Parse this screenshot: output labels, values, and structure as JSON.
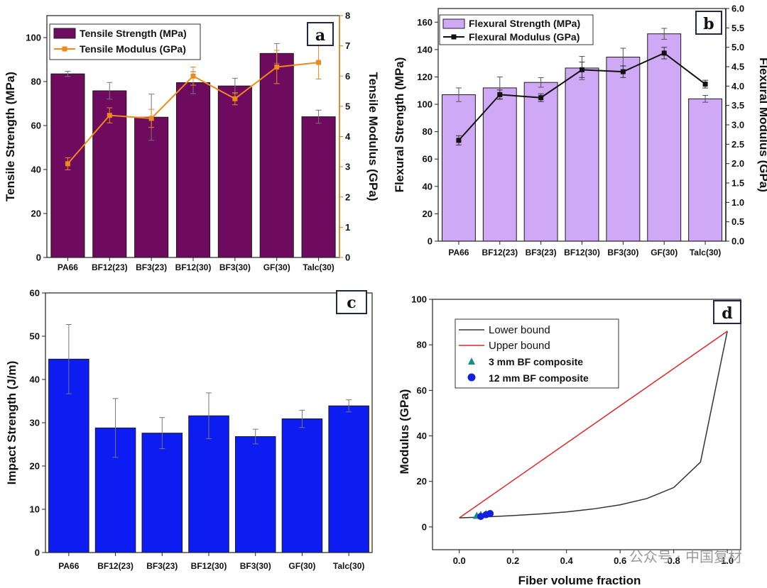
{
  "chart_data": [
    {
      "panel": "a",
      "type": "bar",
      "categories": [
        "PA66",
        "BF12(23)",
        "BF3(23)",
        "BF12(30)",
        "BF3(30)",
        "GF(30)",
        "Talc(30)"
      ],
      "ylabel": "Tensile Strength (MPa)",
      "ylabel_right": "Tensile Modulus (GPa)",
      "ylim": [
        0,
        110
      ],
      "ylim_right": [
        0,
        8
      ],
      "yticks": [
        0,
        20,
        40,
        60,
        80,
        100
      ],
      "yticks_right": [
        0,
        1,
        2,
        3,
        4,
        5,
        6,
        7,
        8
      ],
      "series": [
        {
          "name": "Tensile Strength (MPa)",
          "kind": "bar",
          "axis": "left",
          "color": "#6e0b5e",
          "values": [
            83.5,
            75.8,
            63.8,
            79.5,
            78.0,
            92.8,
            64.0
          ],
          "errors": [
            1.2,
            3.8,
            10.5,
            5.0,
            3.5,
            4.5,
            3.0
          ]
        },
        {
          "name": "Tensile Modulus (GPa)",
          "kind": "line",
          "axis": "right",
          "color": "#ee8a1d",
          "values": [
            3.1,
            4.7,
            4.6,
            6.0,
            5.25,
            6.3,
            6.45
          ],
          "errors": [
            0.2,
            0.25,
            0.3,
            0.3,
            0.2,
            0.55,
            0.55
          ]
        }
      ]
    },
    {
      "panel": "b",
      "type": "bar",
      "categories": [
        "PA66",
        "BF12(23)",
        "BF3(23)",
        "BF12(30)",
        "BF3(30)",
        "GF(30)",
        "Talc(30)"
      ],
      "ylabel": "Flexural Strength (MPa)",
      "ylabel_right": "Flexural Modulus (GPa)",
      "ylim": [
        0,
        170
      ],
      "ylim_right": [
        0,
        6
      ],
      "yticks": [
        0,
        20,
        40,
        60,
        80,
        100,
        120,
        140,
        160
      ],
      "yticks_right": [
        "0.0",
        "0.5",
        "1.0",
        "1.5",
        "2.0",
        "2.5",
        "3.0",
        "3.5",
        "4.0",
        "4.5",
        "5.0",
        "5.5",
        "6.0"
      ],
      "series": [
        {
          "name": "Flexural Strength (MPa)",
          "kind": "bar",
          "axis": "left",
          "color": "#cfa9f5",
          "values": [
            107,
            112,
            116,
            126.5,
            134.5,
            151.5,
            104
          ],
          "errors": [
            5,
            8,
            3.5,
            8.5,
            6.5,
            4,
            2.5
          ]
        },
        {
          "name": "Flexural Modulus (GPa)",
          "kind": "line",
          "axis": "right",
          "color": "#111111",
          "values": [
            2.6,
            3.78,
            3.7,
            4.42,
            4.37,
            4.85,
            4.05
          ],
          "errors": [
            0.12,
            0.12,
            0.1,
            0.2,
            0.15,
            0.15,
            0.1
          ]
        }
      ]
    },
    {
      "panel": "c",
      "type": "bar",
      "categories": [
        "PA66",
        "BF12(23)",
        "BF3(23)",
        "BF12(30)",
        "BF3(30)",
        "GF(30)",
        "Talc(30)"
      ],
      "ylabel": "Impact Strength (J/m)",
      "ylim": [
        0,
        60
      ],
      "yticks": [
        0,
        10,
        20,
        30,
        40,
        50,
        60
      ],
      "series": [
        {
          "name": "Impact Strength (J/m)",
          "kind": "bar",
          "axis": "left",
          "color": "#0d1cf1",
          "values": [
            44.7,
            28.8,
            27.6,
            31.6,
            26.8,
            30.9,
            33.9
          ],
          "errors": [
            8,
            6.8,
            3.6,
            5.3,
            1.7,
            2.0,
            1.4
          ]
        }
      ]
    },
    {
      "panel": "d",
      "type": "line",
      "xlabel": "Fiber volume fraction",
      "ylabel": "Modulus (GPa)",
      "xlim": [
        -0.1,
        1.05
      ],
      "ylim": [
        -10,
        100
      ],
      "xticks": [
        "0.0",
        "0.2",
        "0.4",
        "0.6",
        "0.8",
        "1.0"
      ],
      "yticks": [
        0,
        20,
        40,
        60,
        80,
        100
      ],
      "series": [
        {
          "name": "Lower bound",
          "kind": "line",
          "color": "#333333",
          "x": [
            0,
            0.1,
            0.2,
            0.3,
            0.4,
            0.5,
            0.6,
            0.7,
            0.8,
            0.9,
            1.0
          ],
          "y": [
            4,
            4.4,
            5.0,
            5.7,
            6.6,
            7.9,
            9.7,
            12.5,
            17.3,
            28.5,
            86
          ]
        },
        {
          "name": "Upper bound",
          "kind": "line",
          "color": "#e0272b",
          "x": [
            0,
            1.0
          ],
          "y": [
            4,
            86
          ]
        },
        {
          "name": "3 mm BF composite",
          "kind": "scatter",
          "marker": "triangle",
          "color": "#178d85",
          "x": [
            0.065,
            0.08,
            0.1
          ],
          "y": [
            4.8,
            5.2,
            5.6
          ]
        },
        {
          "name": "12 mm BF composite",
          "kind": "scatter",
          "marker": "circle",
          "color": "#1420e0",
          "x": [
            0.08,
            0.1,
            0.115
          ],
          "y": [
            4.6,
            5.4,
            5.9
          ]
        }
      ]
    }
  ],
  "panel_labels": {
    "a": "a",
    "b": "b",
    "c": "c",
    "d": "d"
  },
  "watermark": "公众号 · 中国复材"
}
